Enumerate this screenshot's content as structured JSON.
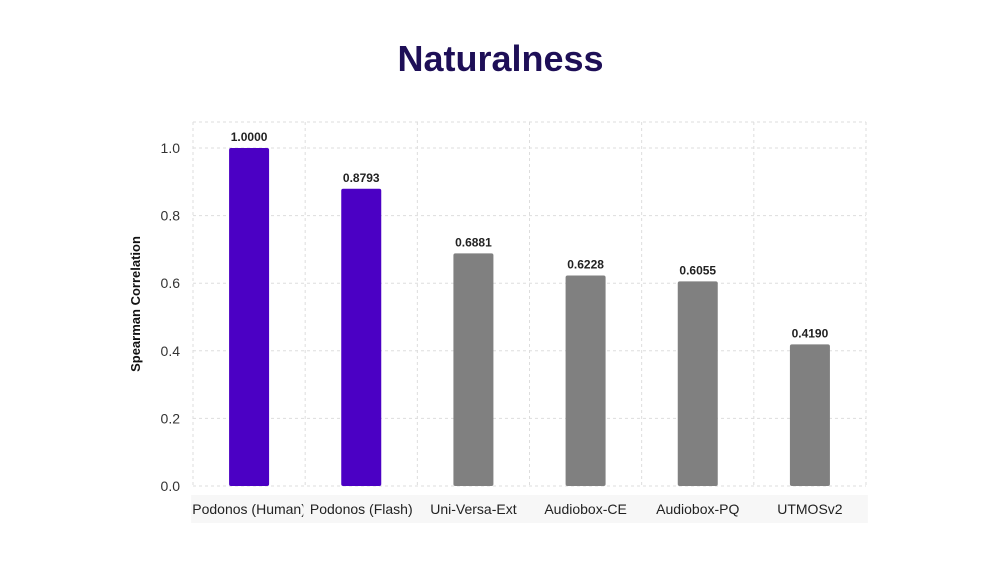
{
  "chart_data": {
    "type": "bar",
    "title": "Naturalness",
    "xlabel": "",
    "ylabel": "Spearman Correlation",
    "ylim": [
      0,
      1.05
    ],
    "yticks": [
      0.0,
      0.2,
      0.4,
      0.6,
      0.8,
      1.0
    ],
    "ytick_labels": [
      "0.0",
      "0.2",
      "0.4",
      "0.6",
      "0.8",
      "1.0"
    ],
    "grid": true,
    "categories": [
      "Podonos (Human)",
      "Podonos (Flash)",
      "Uni-Versa-Ext",
      "Audiobox-CE",
      "Audiobox-PQ",
      "UTMOSv2"
    ],
    "values": [
      1.0,
      0.8793,
      0.6881,
      0.6228,
      0.6055,
      0.419
    ],
    "value_labels": [
      "1.0000",
      "0.8793",
      "0.6881",
      "0.6228",
      "0.6055",
      "0.4190"
    ],
    "colors": [
      "#4b00c4",
      "#4b00c4",
      "#808080",
      "#808080",
      "#808080",
      "#808080"
    ]
  },
  "colors": {
    "title": "#1e0f57",
    "highlight_bar": "#4b00c4",
    "other_bar": "#808080"
  }
}
